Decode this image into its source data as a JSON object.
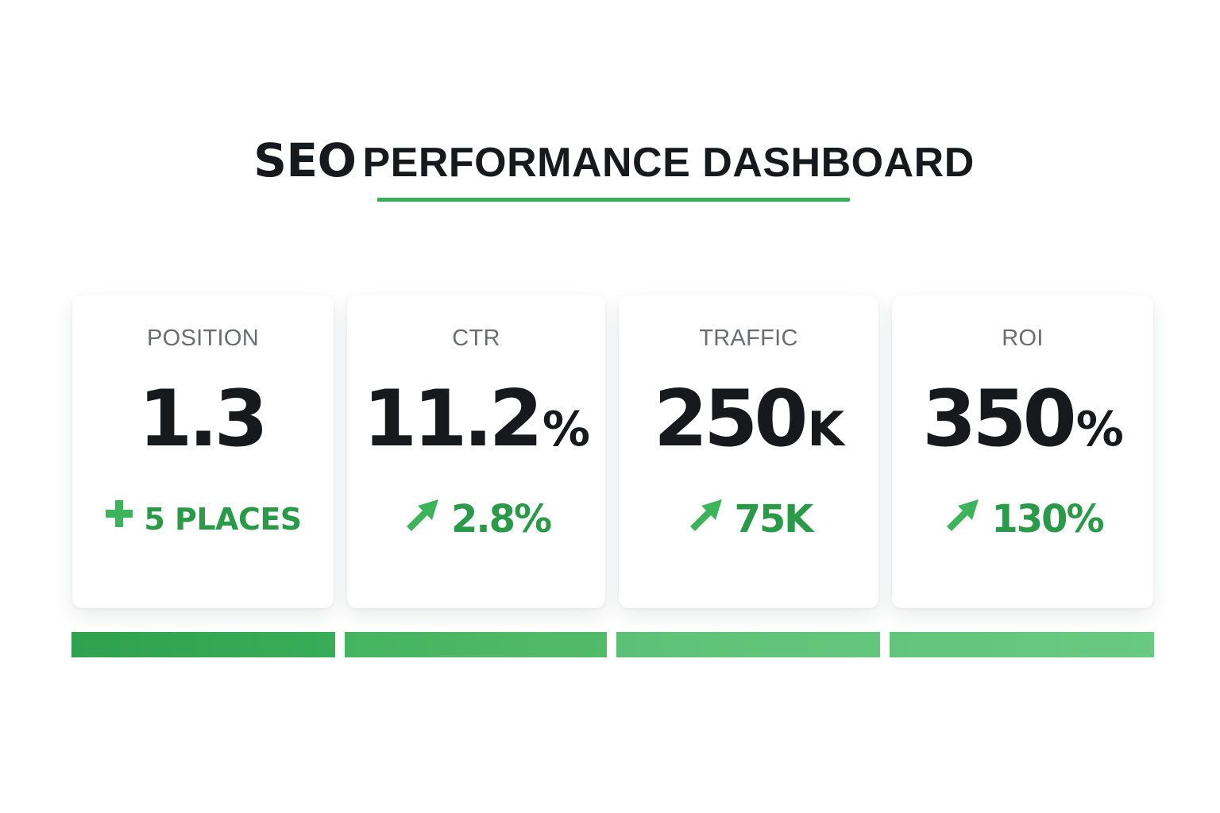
{
  "header": {
    "title_strong": "SEO",
    "title_rest": "PERFORMANCE DASHBOARD"
  },
  "colors": {
    "accent": "#36ad56",
    "positive": "#2a9a48",
    "bar_1": "#33a853",
    "bar_2": "#4bb764",
    "bar_3": "#62c57b",
    "bar_4": "#66c87d"
  },
  "cards": [
    {
      "label": "POSITION",
      "value": "1.3",
      "unit": "",
      "change_icon": "plus-icon",
      "change": "5 PLACES"
    },
    {
      "label": "CTR",
      "value": "11.2",
      "unit": "%",
      "change_icon": "arrow-up-right-icon",
      "change": "2.8%"
    },
    {
      "label": "TRAFFIC",
      "value": "250",
      "unit": "K",
      "change_icon": "arrow-up-right-icon",
      "change": "75K"
    },
    {
      "label": "ROI",
      "value": "350",
      "unit": "%",
      "change_icon": "arrow-up-right-icon",
      "change": "130%"
    }
  ]
}
